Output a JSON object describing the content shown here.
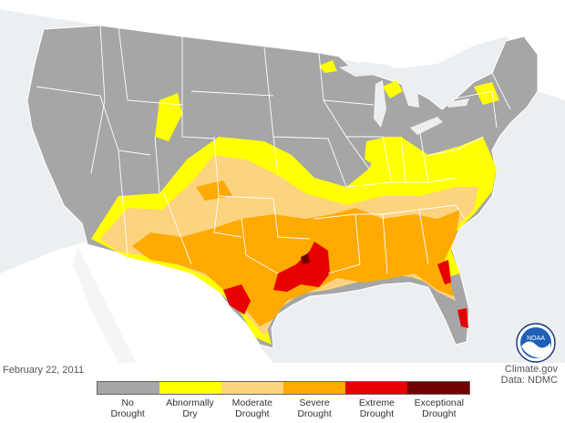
{
  "map": {
    "date": "February 22, 2011",
    "credit_line1": "Climate.gov",
    "credit_line2": "Data: NDMC",
    "logo_text": "NOAA"
  },
  "legend": {
    "categories": [
      {
        "line1": "No",
        "line2": "Drought",
        "color": "#a6a6a6"
      },
      {
        "line1": "Abnormally",
        "line2": "Dry",
        "color": "#ffff00"
      },
      {
        "line1": "Moderate",
        "line2": "Drought",
        "color": "#fcd37f"
      },
      {
        "line1": "Severe",
        "line2": "Drought",
        "color": "#ffaa00"
      },
      {
        "line1": "Extreme",
        "line2": "Drought",
        "color": "#e60000"
      },
      {
        "line1": "Exceptional",
        "line2": "Drought",
        "color": "#730000"
      }
    ]
  },
  "colors": {
    "land_foreign": "#ffffff",
    "water": "#eceff1",
    "state_border": "#ffffff"
  }
}
